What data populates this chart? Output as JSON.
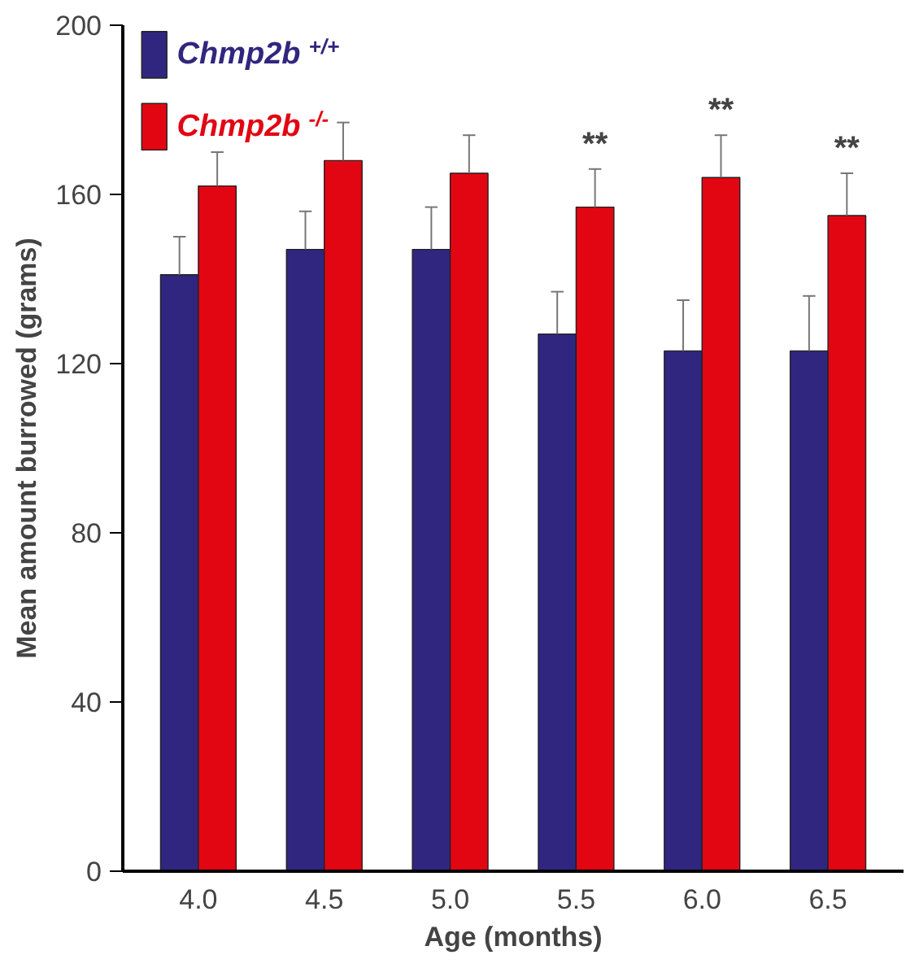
{
  "chart_data": {
    "type": "bar",
    "xlabel": "Age (months)",
    "ylabel": "Mean amount burrowed (grams)",
    "categories": [
      "4.0",
      "4.5",
      "5.0",
      "5.5",
      "6.0",
      "6.5"
    ],
    "series": [
      {
        "name": "Chmp2b$^{+/+}$",
        "color": "#31267f",
        "values": [
          141,
          147,
          147,
          127,
          123,
          123
        ],
        "errors": [
          9,
          9,
          10,
          10,
          12,
          13
        ]
      },
      {
        "name": "Chmp2b$^{-/-}$",
        "color": "#e20613",
        "values": [
          162,
          168,
          165,
          157,
          164,
          155
        ],
        "errors": [
          8,
          9,
          9,
          9,
          10,
          10
        ]
      }
    ],
    "ylim": [
      0,
      200
    ],
    "yticks": [
      0,
      40,
      80,
      120,
      160,
      200
    ],
    "legend": "top left",
    "grid": false,
    "annotations": [
      "**",
      "**",
      "**"
    ]
  }
}
